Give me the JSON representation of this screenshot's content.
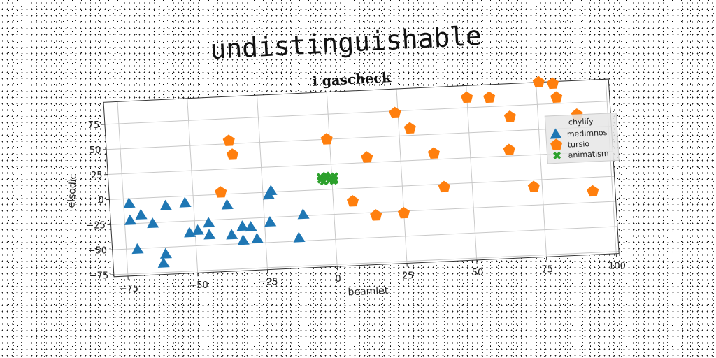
{
  "figure": {
    "suptitle": "undistinguishable",
    "title": "i gascheck"
  },
  "chart_data": {
    "type": "scatter",
    "title": "i gascheck",
    "xlabel": "beamlet",
    "ylabel": "eisodic",
    "xlim": [
      -80,
      101
    ],
    "ylim": [
      -77,
      97
    ],
    "xticks": [
      -75,
      -50,
      -25,
      0,
      25,
      50,
      75,
      100
    ],
    "xtick_labels": [
      "−75",
      "−50",
      "−25",
      "0",
      "25",
      "50",
      "75",
      "100"
    ],
    "yticks": [
      -75,
      -50,
      -25,
      0,
      25,
      50,
      75
    ],
    "ytick_labels": [
      "−75",
      "−50",
      "−25",
      "0",
      "25",
      "50",
      "75"
    ],
    "grid": true,
    "legend": {
      "title": "chylify",
      "placement": "right"
    },
    "series": [
      {
        "name": "medimnos",
        "marker": "triangle",
        "color": "#1f77b4",
        "x": [
          -73,
          -73,
          -69,
          -71,
          -65,
          -60,
          -61,
          -62,
          -53,
          -52,
          -49,
          -45,
          -45,
          -38,
          -37,
          -33,
          -33,
          -30,
          -28,
          -23,
          -23,
          -22,
          -13,
          -11
        ],
        "y": [
          -5,
          -22,
          -17,
          -51,
          -26,
          -9,
          -57,
          -66,
          -7,
          -37,
          -35,
          -28,
          -40,
          -11,
          -41,
          -33,
          -47,
          -34,
          -46,
          -30,
          -3,
          1,
          -47,
          -24
        ]
      },
      {
        "name": "tursio",
        "marker": "pentagon",
        "color": "#ff7f0e",
        "x": [
          -40,
          -36,
          -35,
          -1,
          7,
          13,
          15,
          24,
          25,
          29,
          37,
          40,
          50,
          58,
          64,
          65,
          72,
          76,
          81,
          82,
          89,
          93
        ],
        "y": [
          2,
          53,
          39,
          50,
          -13,
          30,
          -28,
          73,
          -27,
          57,
          31,
          -3,
          85,
          84,
          31,
          64,
          -7,
          97,
          95,
          81,
          63,
          -14
        ]
      },
      {
        "name": "animatism",
        "marker": "x",
        "color": "#2ca02c",
        "x": [
          -4,
          -2,
          0,
          1,
          -3,
          -1,
          0.5,
          -4,
          -2,
          1
        ],
        "y": [
          13,
          14,
          12,
          13,
          8,
          9,
          8,
          10,
          11,
          9
        ]
      }
    ]
  }
}
